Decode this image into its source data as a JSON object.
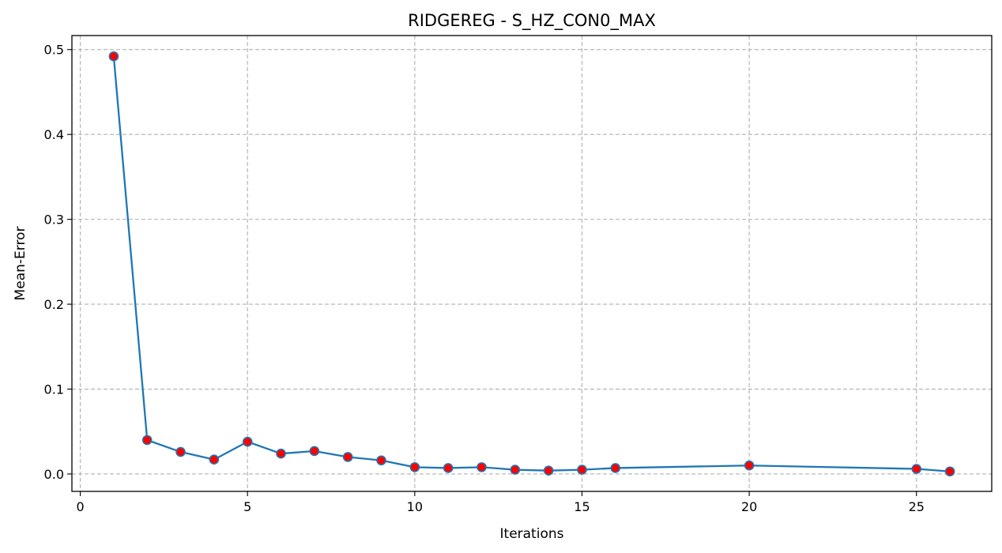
{
  "chart_data": {
    "type": "line",
    "title": "RIDGEREG - S_HZ_CON0_MAX",
    "xlabel": "Iterations",
    "ylabel": "Mean-Error",
    "xlim": [
      -0.25,
      27.25
    ],
    "ylim": [
      -0.0205,
      0.5165
    ],
    "x_ticks": [
      0,
      5,
      10,
      15,
      20,
      25
    ],
    "y_ticks": [
      0.0,
      0.1,
      0.2,
      0.3,
      0.4,
      0.5
    ],
    "x_tick_labels": [
      "0",
      "5",
      "10",
      "15",
      "20",
      "25"
    ],
    "y_tick_labels": [
      "0.0",
      "0.1",
      "0.2",
      "0.3",
      "0.4",
      "0.5"
    ],
    "grid": true,
    "series": [
      {
        "x": [
          1,
          2,
          3,
          4,
          5,
          6,
          7,
          8,
          9,
          10,
          11,
          12,
          13,
          14,
          15,
          16,
          20,
          25,
          26
        ],
        "y": [
          0.492,
          0.04,
          0.026,
          0.017,
          0.038,
          0.024,
          0.027,
          0.02,
          0.016,
          0.008,
          0.007,
          0.008,
          0.005,
          0.004,
          0.005,
          0.007,
          0.01,
          0.006,
          0.003
        ],
        "line_color": "#1f77b4",
        "marker_color": "#ff0000",
        "marker_edge_color": "#1f77b4"
      }
    ]
  }
}
